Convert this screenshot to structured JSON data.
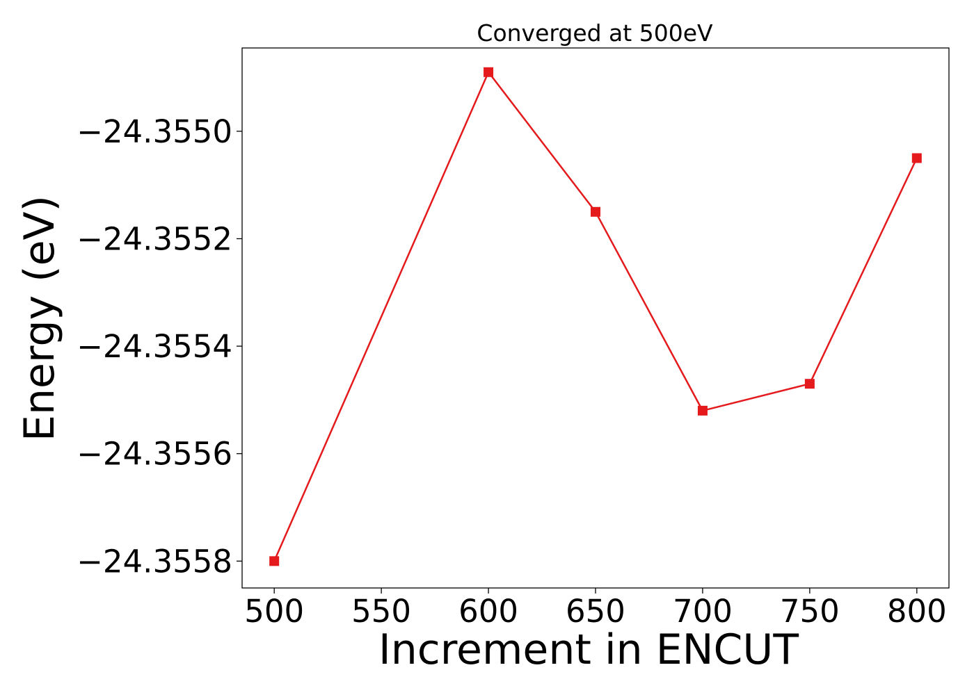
{
  "chart_data": {
    "type": "line",
    "title": "Converged at 500eV",
    "xlabel": "Increment in ENCUT",
    "ylabel": "Energy (eV)",
    "x": [
      500,
      600,
      650,
      700,
      750,
      800
    ],
    "series": [
      {
        "values": [
          -24.3558,
          -24.35489,
          -24.35515,
          -24.35552,
          -24.35547,
          -24.35505
        ],
        "color": "#e41a1c",
        "marker": "square"
      }
    ],
    "xlim": [
      485,
      815
    ],
    "ylim": [
      -24.35585,
      -24.354845
    ],
    "xticks": [
      500,
      550,
      600,
      650,
      700,
      750,
      800
    ],
    "xtick_labels": [
      "500",
      "550",
      "600",
      "650",
      "700",
      "750",
      "800"
    ],
    "yticks": [
      -24.3558,
      -24.3556,
      -24.3554,
      -24.3552,
      -24.355
    ],
    "ytick_labels": [
      "−24.3558",
      "−24.3556",
      "−24.3554",
      "−24.3552",
      "−24.3550"
    ],
    "grid": false,
    "legend": "none"
  }
}
